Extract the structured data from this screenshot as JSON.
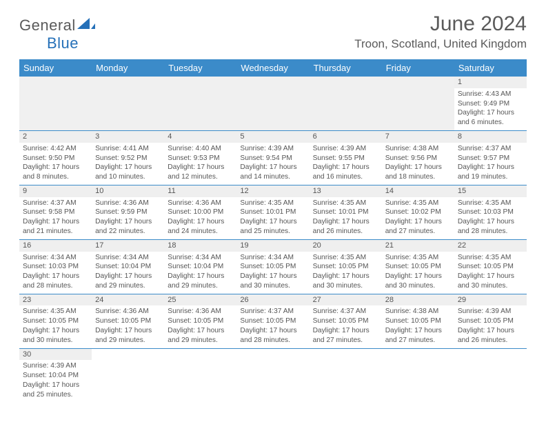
{
  "logo": {
    "text1": "General",
    "text2": "Blue"
  },
  "title": "June 2024",
  "location": "Troon, Scotland, United Kingdom",
  "colors": {
    "header_bg": "#3b8bc9",
    "header_fg": "#ffffff",
    "rule": "#3b8bc9",
    "text": "#555555",
    "daynum_bg": "#efefef"
  },
  "typography": {
    "title_fontsize": 30,
    "location_fontsize": 17,
    "header_fontsize": 13,
    "cell_fontsize": 10.2
  },
  "day_names": [
    "Sunday",
    "Monday",
    "Tuesday",
    "Wednesday",
    "Thursday",
    "Friday",
    "Saturday"
  ],
  "weeks": [
    [
      null,
      null,
      null,
      null,
      null,
      null,
      {
        "d": "1",
        "sr": "Sunrise: 4:43 AM",
        "ss": "Sunset: 9:49 PM",
        "dl1": "Daylight: 17 hours",
        "dl2": "and 6 minutes."
      }
    ],
    [
      {
        "d": "2",
        "sr": "Sunrise: 4:42 AM",
        "ss": "Sunset: 9:50 PM",
        "dl1": "Daylight: 17 hours",
        "dl2": "and 8 minutes."
      },
      {
        "d": "3",
        "sr": "Sunrise: 4:41 AM",
        "ss": "Sunset: 9:52 PM",
        "dl1": "Daylight: 17 hours",
        "dl2": "and 10 minutes."
      },
      {
        "d": "4",
        "sr": "Sunrise: 4:40 AM",
        "ss": "Sunset: 9:53 PM",
        "dl1": "Daylight: 17 hours",
        "dl2": "and 12 minutes."
      },
      {
        "d": "5",
        "sr": "Sunrise: 4:39 AM",
        "ss": "Sunset: 9:54 PM",
        "dl1": "Daylight: 17 hours",
        "dl2": "and 14 minutes."
      },
      {
        "d": "6",
        "sr": "Sunrise: 4:39 AM",
        "ss": "Sunset: 9:55 PM",
        "dl1": "Daylight: 17 hours",
        "dl2": "and 16 minutes."
      },
      {
        "d": "7",
        "sr": "Sunrise: 4:38 AM",
        "ss": "Sunset: 9:56 PM",
        "dl1": "Daylight: 17 hours",
        "dl2": "and 18 minutes."
      },
      {
        "d": "8",
        "sr": "Sunrise: 4:37 AM",
        "ss": "Sunset: 9:57 PM",
        "dl1": "Daylight: 17 hours",
        "dl2": "and 19 minutes."
      }
    ],
    [
      {
        "d": "9",
        "sr": "Sunrise: 4:37 AM",
        "ss": "Sunset: 9:58 PM",
        "dl1": "Daylight: 17 hours",
        "dl2": "and 21 minutes."
      },
      {
        "d": "10",
        "sr": "Sunrise: 4:36 AM",
        "ss": "Sunset: 9:59 PM",
        "dl1": "Daylight: 17 hours",
        "dl2": "and 22 minutes."
      },
      {
        "d": "11",
        "sr": "Sunrise: 4:36 AM",
        "ss": "Sunset: 10:00 PM",
        "dl1": "Daylight: 17 hours",
        "dl2": "and 24 minutes."
      },
      {
        "d": "12",
        "sr": "Sunrise: 4:35 AM",
        "ss": "Sunset: 10:01 PM",
        "dl1": "Daylight: 17 hours",
        "dl2": "and 25 minutes."
      },
      {
        "d": "13",
        "sr": "Sunrise: 4:35 AM",
        "ss": "Sunset: 10:01 PM",
        "dl1": "Daylight: 17 hours",
        "dl2": "and 26 minutes."
      },
      {
        "d": "14",
        "sr": "Sunrise: 4:35 AM",
        "ss": "Sunset: 10:02 PM",
        "dl1": "Daylight: 17 hours",
        "dl2": "and 27 minutes."
      },
      {
        "d": "15",
        "sr": "Sunrise: 4:35 AM",
        "ss": "Sunset: 10:03 PM",
        "dl1": "Daylight: 17 hours",
        "dl2": "and 28 minutes."
      }
    ],
    [
      {
        "d": "16",
        "sr": "Sunrise: 4:34 AM",
        "ss": "Sunset: 10:03 PM",
        "dl1": "Daylight: 17 hours",
        "dl2": "and 28 minutes."
      },
      {
        "d": "17",
        "sr": "Sunrise: 4:34 AM",
        "ss": "Sunset: 10:04 PM",
        "dl1": "Daylight: 17 hours",
        "dl2": "and 29 minutes."
      },
      {
        "d": "18",
        "sr": "Sunrise: 4:34 AM",
        "ss": "Sunset: 10:04 PM",
        "dl1": "Daylight: 17 hours",
        "dl2": "and 29 minutes."
      },
      {
        "d": "19",
        "sr": "Sunrise: 4:34 AM",
        "ss": "Sunset: 10:05 PM",
        "dl1": "Daylight: 17 hours",
        "dl2": "and 30 minutes."
      },
      {
        "d": "20",
        "sr": "Sunrise: 4:35 AM",
        "ss": "Sunset: 10:05 PM",
        "dl1": "Daylight: 17 hours",
        "dl2": "and 30 minutes."
      },
      {
        "d": "21",
        "sr": "Sunrise: 4:35 AM",
        "ss": "Sunset: 10:05 PM",
        "dl1": "Daylight: 17 hours",
        "dl2": "and 30 minutes."
      },
      {
        "d": "22",
        "sr": "Sunrise: 4:35 AM",
        "ss": "Sunset: 10:05 PM",
        "dl1": "Daylight: 17 hours",
        "dl2": "and 30 minutes."
      }
    ],
    [
      {
        "d": "23",
        "sr": "Sunrise: 4:35 AM",
        "ss": "Sunset: 10:05 PM",
        "dl1": "Daylight: 17 hours",
        "dl2": "and 30 minutes."
      },
      {
        "d": "24",
        "sr": "Sunrise: 4:36 AM",
        "ss": "Sunset: 10:05 PM",
        "dl1": "Daylight: 17 hours",
        "dl2": "and 29 minutes."
      },
      {
        "d": "25",
        "sr": "Sunrise: 4:36 AM",
        "ss": "Sunset: 10:05 PM",
        "dl1": "Daylight: 17 hours",
        "dl2": "and 29 minutes."
      },
      {
        "d": "26",
        "sr": "Sunrise: 4:37 AM",
        "ss": "Sunset: 10:05 PM",
        "dl1": "Daylight: 17 hours",
        "dl2": "and 28 minutes."
      },
      {
        "d": "27",
        "sr": "Sunrise: 4:37 AM",
        "ss": "Sunset: 10:05 PM",
        "dl1": "Daylight: 17 hours",
        "dl2": "and 27 minutes."
      },
      {
        "d": "28",
        "sr": "Sunrise: 4:38 AM",
        "ss": "Sunset: 10:05 PM",
        "dl1": "Daylight: 17 hours",
        "dl2": "and 27 minutes."
      },
      {
        "d": "29",
        "sr": "Sunrise: 4:39 AM",
        "ss": "Sunset: 10:05 PM",
        "dl1": "Daylight: 17 hours",
        "dl2": "and 26 minutes."
      }
    ],
    [
      {
        "d": "30",
        "sr": "Sunrise: 4:39 AM",
        "ss": "Sunset: 10:04 PM",
        "dl1": "Daylight: 17 hours",
        "dl2": "and 25 minutes."
      },
      null,
      null,
      null,
      null,
      null,
      null
    ]
  ]
}
